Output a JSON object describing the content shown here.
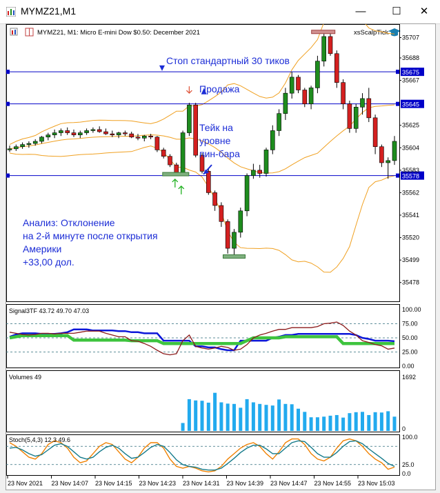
{
  "window": {
    "title": "MYMZ21,M1",
    "minimize_glyph": "—",
    "maximize_glyph": "☐",
    "close_glyph": "✕"
  },
  "chart_header": {
    "info": "MYMZ21, M1:  Micro E-mini Dow $0.50: December 2021",
    "indicator_name": "xsScalpTick"
  },
  "chart_data": [
    {
      "type": "candlestick",
      "title": "MYMZ21, M1:  Micro E-mini Dow $0.50: December 2021",
      "ylim": [
        35463,
        35717
      ],
      "y_ticks": [
        35707,
        35688,
        35667,
        35645,
        35625,
        35604,
        35583,
        35562,
        35541,
        35520,
        35499,
        35478
      ],
      "hlines": [
        {
          "value": 35675,
          "label": "35675"
        },
        {
          "value": 35645,
          "label": "35645"
        },
        {
          "value": 35578,
          "label": "35578"
        }
      ],
      "hline_color": "#0000c8",
      "up_color": "#1e8c1e",
      "down_color": "#d42020",
      "band_color": "#f0a020",
      "candles": [
        [
          35602,
          35606,
          35600,
          35603
        ],
        [
          35603,
          35607,
          35601,
          35605
        ],
        [
          35605,
          35609,
          35603,
          35607
        ],
        [
          35607,
          35610,
          35604,
          35608
        ],
        [
          35608,
          35612,
          35606,
          35610
        ],
        [
          35610,
          35615,
          35608,
          35614
        ],
        [
          35614,
          35618,
          35611,
          35616
        ],
        [
          35616,
          35621,
          35613,
          35618
        ],
        [
          35618,
          35622,
          35615,
          35620
        ],
        [
          35620,
          35623,
          35616,
          35618
        ],
        [
          35618,
          35621,
          35614,
          35616
        ],
        [
          35616,
          35620,
          35613,
          35618
        ],
        [
          35618,
          35622,
          35616,
          35620
        ],
        [
          35620,
          35623,
          35618,
          35621
        ],
        [
          35621,
          35624,
          35618,
          35619
        ],
        [
          35619,
          35622,
          35616,
          35617
        ],
        [
          35617,
          35620,
          35614,
          35616
        ],
        [
          35616,
          35619,
          35613,
          35618
        ],
        [
          35618,
          35620,
          35615,
          35617
        ],
        [
          35617,
          35619,
          35613,
          35614
        ],
        [
          35614,
          35617,
          35611,
          35613
        ],
        [
          35613,
          35616,
          35610,
          35615
        ],
        [
          35615,
          35617,
          35612,
          35614
        ],
        [
          35614,
          35615,
          35600,
          35602
        ],
        [
          35602,
          35604,
          35594,
          35596
        ],
        [
          35596,
          35598,
          35586,
          35588
        ],
        [
          35588,
          35590,
          35578,
          35580
        ],
        [
          35580,
          35620,
          35578,
          35618
        ],
        [
          35618,
          35646,
          35615,
          35644
        ],
        [
          35644,
          35646,
          35595,
          35597
        ],
        [
          35597,
          35599,
          35580,
          35582
        ],
        [
          35582,
          35584,
          35560,
          35562
        ],
        [
          35562,
          35564,
          35545,
          35550
        ],
        [
          35550,
          35553,
          35530,
          35535
        ],
        [
          35535,
          35537,
          35505,
          35510
        ],
        [
          35510,
          35528,
          35502,
          35525
        ],
        [
          35525,
          35548,
          35520,
          35545
        ],
        [
          35545,
          35580,
          35540,
          35578
        ],
        [
          35578,
          35589,
          35575,
          35583
        ],
        [
          35583,
          35588,
          35576,
          35580
        ],
        [
          35580,
          35604,
          35577,
          35602
        ],
        [
          35602,
          35625,
          35598,
          35620
        ],
        [
          35620,
          35640,
          35615,
          35636
        ],
        [
          35636,
          35660,
          35630,
          35655
        ],
        [
          35655,
          35675,
          35650,
          35670
        ],
        [
          35670,
          35672,
          35655,
          35658
        ],
        [
          35658,
          35660,
          35642,
          35645
        ],
        [
          35645,
          35662,
          35640,
          35660
        ],
        [
          35660,
          35690,
          35655,
          35685
        ],
        [
          35685,
          35712,
          35680,
          35708
        ],
        [
          35708,
          35712,
          35690,
          35692
        ],
        [
          35692,
          35695,
          35660,
          35665
        ],
        [
          35665,
          35668,
          35640,
          35645
        ],
        [
          35645,
          35648,
          35618,
          35622
        ],
        [
          35622,
          35645,
          35618,
          35642
        ],
        [
          35642,
          35655,
          35635,
          35650
        ],
        [
          35650,
          35660,
          35628,
          35632
        ],
        [
          35632,
          35635,
          35598,
          35605
        ],
        [
          35605,
          35607,
          35586,
          35590
        ],
        [
          35590,
          35595,
          35575,
          35592
        ],
        [
          35592,
          35615,
          35588,
          35610
        ]
      ],
      "annotations": {
        "stop": "Стоп стандартный 30 тиков",
        "sell": "Продажа",
        "take": "Тейк на\nуровне\nпин-бара",
        "analysis": "Анализ: Отклонение\nна 2-й минуте после открытия\nАмерики\n+33,00 дол."
      }
    },
    {
      "type": "line",
      "title": "Signal3TF 43.72 49.70 47.03",
      "ylim": [
        0,
        100
      ],
      "y_ticks": [
        100,
        75,
        50,
        25,
        0
      ],
      "y_tick_labels": [
        "100.00",
        "75.00",
        "50.00",
        "25.00",
        "0.00"
      ],
      "hlines": [
        75,
        50,
        25
      ],
      "series": [
        {
          "color": "#0b16d8",
          "values": [
            52,
            56,
            58,
            58,
            58,
            57,
            57,
            57,
            58,
            60,
            65,
            65,
            65,
            63,
            63,
            63,
            63,
            62,
            62,
            60,
            60,
            58,
            58,
            58,
            45,
            45,
            45,
            45,
            45,
            35,
            35,
            33,
            33,
            30,
            28,
            28,
            45,
            45,
            45,
            45,
            45,
            50,
            52,
            55,
            55,
            57,
            57,
            57,
            57,
            57,
            57,
            57,
            57,
            57,
            55,
            50,
            48,
            45,
            45,
            45,
            44
          ]
        },
        {
          "color": "#3ec43e",
          "values": [
            50,
            52,
            54,
            54,
            54,
            54,
            54,
            54,
            54,
            54,
            46,
            46,
            46,
            46,
            46,
            46,
            46,
            46,
            46,
            45,
            45,
            45,
            45,
            45,
            40,
            40,
            40,
            40,
            40,
            40,
            40,
            40,
            40,
            40,
            40,
            40,
            40,
            45,
            50,
            50,
            50,
            50,
            50,
            52,
            52,
            52,
            52,
            52,
            52,
            52,
            52,
            52,
            40,
            40,
            40,
            40,
            40,
            40,
            40,
            40,
            40
          ]
        },
        {
          "color": "#8b1a1a",
          "values": [
            60,
            58,
            56,
            55,
            56,
            58,
            58,
            57,
            58,
            58,
            58,
            60,
            62,
            62,
            62,
            58,
            55,
            52,
            52,
            45,
            44,
            40,
            35,
            28,
            22,
            20,
            22,
            45,
            55,
            35,
            32,
            30,
            32,
            35,
            33,
            28,
            30,
            38,
            50,
            55,
            58,
            62,
            65,
            65,
            68,
            68,
            68,
            68,
            70,
            75,
            76,
            78,
            72,
            62,
            55,
            45,
            42,
            38,
            36,
            30,
            32
          ]
        }
      ]
    },
    {
      "type": "bar",
      "title": "Volumes 49",
      "ylim": [
        0,
        1692
      ],
      "y_tick_labels": [
        "1692",
        "0"
      ],
      "bar_color": "#22aaee",
      "values": [
        0,
        0,
        0,
        0,
        0,
        0,
        0,
        0,
        0,
        0,
        0,
        0,
        0,
        0,
        0,
        0,
        0,
        0,
        0,
        0,
        0,
        0,
        0,
        0,
        0,
        0,
        0,
        250,
        1000,
        960,
        950,
        890,
        1200,
        900,
        860,
        850,
        730,
        1000,
        900,
        850,
        820,
        800,
        990,
        850,
        840,
        700,
        600,
        430,
        430,
        450,
        480,
        500,
        420,
        560,
        590,
        600,
        500,
        590,
        580,
        620,
        450
      ]
    },
    {
      "type": "line",
      "title": "Stoch(5,4,3) 12.3 49.6",
      "ylim": [
        0,
        100
      ],
      "y_ticks": [
        100,
        25,
        0
      ],
      "y_tick_labels": [
        "100.0",
        "25.0",
        "0.0"
      ],
      "hlines": [
        75,
        25
      ],
      "series": [
        {
          "color": "#f08000",
          "values": [
            85,
            75,
            60,
            45,
            40,
            55,
            80,
            90,
            85,
            70,
            45,
            30,
            35,
            55,
            75,
            85,
            80,
            60,
            40,
            30,
            45,
            70,
            85,
            85,
            70,
            40,
            20,
            15,
            20,
            15,
            8,
            5,
            8,
            20,
            40,
            55,
            70,
            80,
            85,
            75,
            55,
            40,
            60,
            85,
            95,
            95,
            80,
            55,
            40,
            35,
            45,
            70,
            90,
            95,
            90,
            75,
            55,
            40,
            30,
            12,
            18
          ]
        },
        {
          "color": "#147a8a",
          "values": [
            70,
            72,
            65,
            55,
            48,
            52,
            65,
            78,
            82,
            75,
            60,
            45,
            40,
            45,
            60,
            72,
            78,
            70,
            55,
            42,
            45,
            58,
            72,
            80,
            75,
            58,
            38,
            25,
            20,
            18,
            12,
            10,
            10,
            15,
            28,
            42,
            58,
            70,
            78,
            78,
            68,
            55,
            55,
            70,
            85,
            90,
            88,
            72,
            55,
            45,
            45,
            58,
            75,
            88,
            90,
            82,
            68,
            55,
            42,
            28,
            20
          ]
        }
      ]
    }
  ],
  "x_axis": {
    "tick_labels": [
      "23 Nov 2021",
      "23 Nov 14:07",
      "23 Nov 14:15",
      "23 Nov 14:23",
      "23 Nov 14:31",
      "23 Nov 14:39",
      "23 Nov 14:47",
      "23 Nov 14:55",
      "23 Nov 15:03"
    ]
  }
}
